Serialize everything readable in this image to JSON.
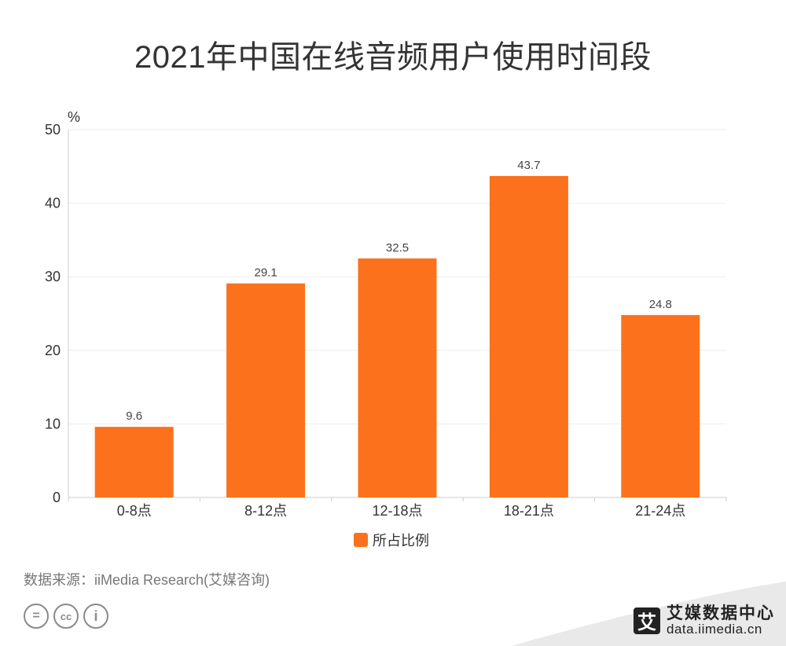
{
  "title": "2021年中国在线音频用户使用时间段",
  "source": "数据来源：iiMedia Research(艾媒咨询)",
  "brand": {
    "name": "艾媒数据中心",
    "url": "data.iimedia.cn",
    "mark": "艾"
  },
  "colors": {
    "bar": "#fc711c",
    "grid": "#eeeeee",
    "axis": "#cccccc",
    "text": "#333333"
  },
  "chart_data": {
    "type": "bar",
    "title": "2021年中国在线音频用户使用时间段",
    "ylabel": "%",
    "xlabel": "",
    "ylim": [
      0,
      50
    ],
    "yticks": [
      0,
      10,
      20,
      30,
      40,
      50
    ],
    "grid": true,
    "legend_position": "bottom",
    "categories": [
      "0-8点",
      "8-12点",
      "12-18点",
      "18-21点",
      "21-24点"
    ],
    "series": [
      {
        "name": "所占比例",
        "values": [
          9.6,
          29.1,
          32.5,
          43.7,
          24.8
        ]
      }
    ]
  }
}
